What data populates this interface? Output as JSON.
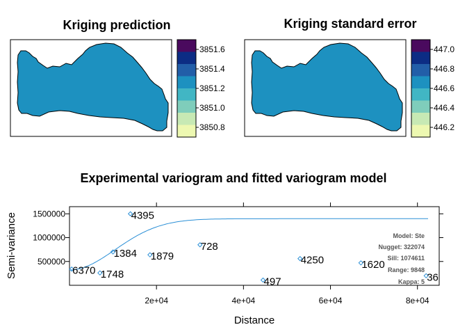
{
  "colors": {
    "region_fill": "#2191c2",
    "scale": [
      "#edf8b1",
      "#c7e9b4",
      "#7fcdbb",
      "#41b6c4",
      "#1d91c0",
      "#225ea8",
      "#0c2c84",
      "#4a0a5e"
    ],
    "fit_line": "#2a8fd6",
    "points": "#2a8fd6"
  },
  "chart_data": [
    {
      "type": "heatmap",
      "title": "Kriging prediction",
      "legend_ticks": [
        "3851.6",
        "3851.4",
        "3851.2",
        "3851.0",
        "3850.8"
      ],
      "legend_tick_values": [
        3851.6,
        3851.4,
        3851.2,
        3851.0,
        3850.8
      ],
      "legend_range": [
        3850.7,
        3851.7
      ],
      "legend_bins": 8,
      "region_class": 4
    },
    {
      "type": "heatmap",
      "title": "Kriging standard error",
      "legend_ticks": [
        "447.0",
        "446.8",
        "446.6",
        "446.4",
        "446.2"
      ],
      "legend_tick_values": [
        447.0,
        446.8,
        446.6,
        446.4,
        446.2
      ],
      "legend_range": [
        446.1,
        447.1
      ],
      "legend_bins": 8,
      "region_class": 4
    },
    {
      "type": "scatter",
      "title": "Experimental variogram and fitted variogram model",
      "xlabel": "Distance",
      "ylabel": "Semi-variance",
      "xlim": [
        0,
        85000
      ],
      "ylim": [
        0,
        1650000
      ],
      "x_ticks": [
        "2e+04",
        "4e+04",
        "6e+04",
        "8e+04"
      ],
      "x_tick_values": [
        20000,
        40000,
        60000,
        80000
      ],
      "y_ticks": [
        "500000",
        "1000000",
        "1500000"
      ],
      "y_tick_values": [
        500000,
        1000000,
        1500000
      ],
      "points": [
        {
          "x": 500,
          "y": 340000,
          "label": "6370"
        },
        {
          "x": 7000,
          "y": 260000,
          "label": "1748"
        },
        {
          "x": 10000,
          "y": 700000,
          "label": "1384"
        },
        {
          "x": 14000,
          "y": 1500000,
          "label": "4395"
        },
        {
          "x": 18500,
          "y": 640000,
          "label": "1879"
        },
        {
          "x": 30000,
          "y": 850000,
          "label": "728"
        },
        {
          "x": 44500,
          "y": 110000,
          "label": "497"
        },
        {
          "x": 53000,
          "y": 560000,
          "label": "4250"
        },
        {
          "x": 67000,
          "y": 470000,
          "label": "1620"
        },
        {
          "x": 82000,
          "y": 200000,
          "label": "36"
        }
      ],
      "model": {
        "type": "Ste",
        "nugget": 322074,
        "sill": 1074611,
        "range": 9848,
        "kappa": 5
      },
      "model_text": [
        "Model: Ste",
        "Nugget: 322074",
        "Sill: 1074611",
        "Range: 9848",
        "Kappa: 5"
      ]
    }
  ]
}
